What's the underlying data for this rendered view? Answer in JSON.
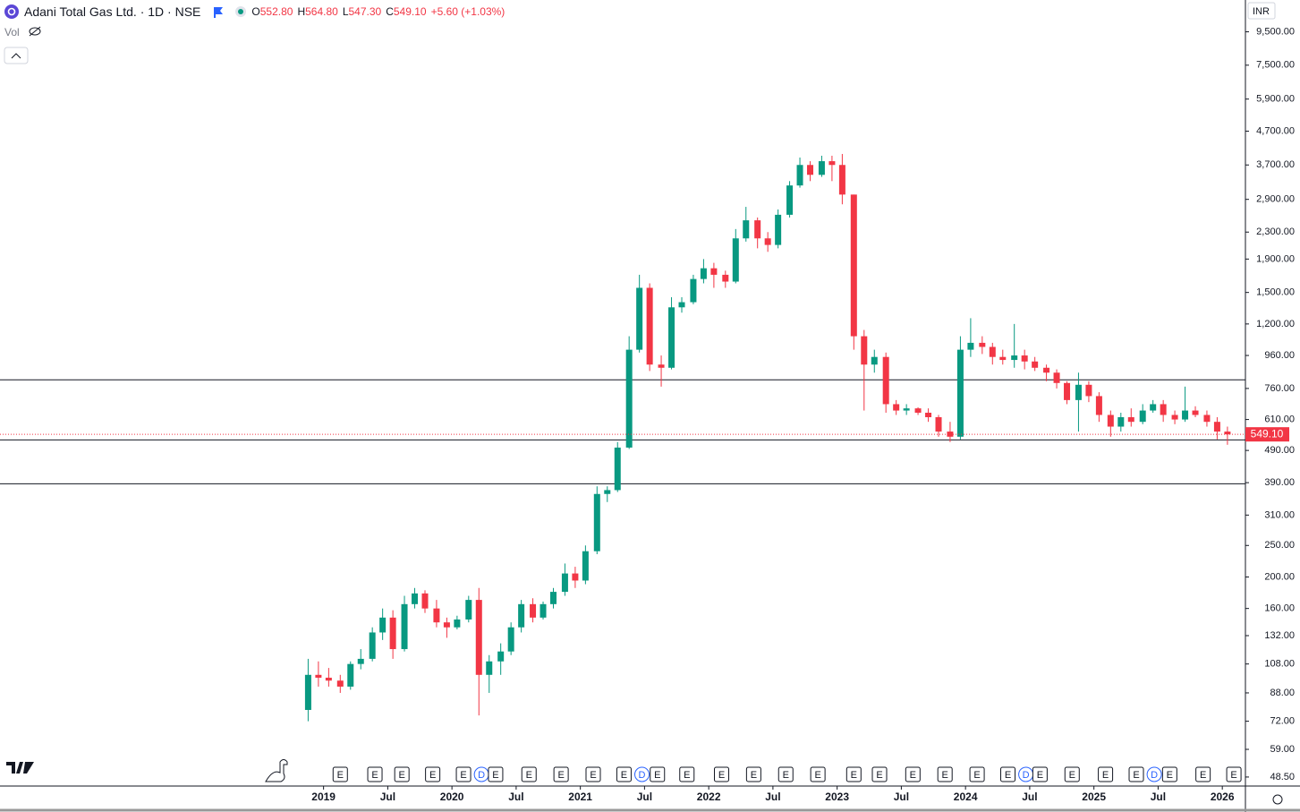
{
  "chart_data": {
    "type": "candlestick",
    "title": "Adani Total Gas Ltd. · 1D · NSE",
    "header": {
      "o_label": "O",
      "o": "552.80",
      "h_label": "H",
      "h": "564.80",
      "l_label": "L",
      "l": "547.30",
      "c_label": "C",
      "c": "549.10",
      "change": "+5.60 (+1.03%)"
    },
    "volume_label": "Vol",
    "currency": "INR",
    "log_scale": true,
    "up_color": "#089981",
    "down_color": "#f23645",
    "x": [
      2018.88,
      2018.96,
      2019.04,
      2019.13,
      2019.21,
      2019.29,
      2019.38,
      2019.46,
      2019.54,
      2019.63,
      2019.71,
      2019.79,
      2019.88,
      2019.96,
      2020.04,
      2020.13,
      2020.21,
      2020.29,
      2020.38,
      2020.46,
      2020.54,
      2020.63,
      2020.71,
      2020.79,
      2020.88,
      2020.96,
      2021.04,
      2021.13,
      2021.21,
      2021.29,
      2021.38,
      2021.46,
      2021.54,
      2021.63,
      2021.71,
      2021.79,
      2021.88,
      2021.96,
      2022.04,
      2022.13,
      2022.21,
      2022.29,
      2022.38,
      2022.46,
      2022.54,
      2022.63,
      2022.71,
      2022.79,
      2022.88,
      2022.96,
      2023.04,
      2023.13,
      2023.21,
      2023.29,
      2023.38,
      2023.46,
      2023.54,
      2023.63,
      2023.71,
      2023.79,
      2023.88,
      2023.96,
      2024.04,
      2024.13,
      2024.21,
      2024.29,
      2024.38,
      2024.46,
      2024.54,
      2024.63,
      2024.71,
      2024.79,
      2024.88,
      2024.96,
      2025.04,
      2025.13,
      2025.21,
      2025.29,
      2025.38,
      2025.46,
      2025.54,
      2025.63,
      2025.71,
      2025.79,
      2025.88,
      2025.96,
      2026.04
    ],
    "open": [
      78,
      100,
      98,
      96,
      92,
      108,
      112,
      135,
      150,
      120,
      165,
      178,
      160,
      145,
      140,
      148,
      170,
      100,
      110,
      118,
      140,
      165,
      150,
      165,
      180,
      205,
      195,
      240,
      360,
      370,
      500,
      1000,
      1550,
      900,
      880,
      1350,
      1400,
      1650,
      1780,
      1700,
      1620,
      2200,
      2500,
      2200,
      2100,
      2600,
      3200,
      3700,
      3450,
      3800,
      3700,
      3000,
      1100,
      900,
      950,
      680,
      650,
      660,
      640,
      620,
      560,
      540,
      1000,
      1050,
      1020,
      950,
      930,
      960,
      920,
      880,
      850,
      790,
      700,
      780,
      720,
      630,
      580,
      620,
      600,
      650,
      680,
      630,
      610,
      650,
      630,
      600,
      560
    ],
    "high": [
      112,
      110,
      105,
      100,
      110,
      120,
      140,
      160,
      158,
      175,
      185,
      182,
      170,
      150,
      152,
      175,
      185,
      115,
      125,
      145,
      170,
      172,
      168,
      185,
      220,
      215,
      250,
      380,
      380,
      520,
      1100,
      1700,
      1600,
      960,
      1450,
      1450,
      1700,
      1900,
      1850,
      1750,
      2350,
      2750,
      2550,
      2300,
      2700,
      3300,
      3900,
      3800,
      3950,
      3950,
      4000,
      3000,
      1150,
      1000,
      980,
      700,
      680,
      665,
      660,
      630,
      600,
      1100,
      1250,
      1100,
      1050,
      1000,
      1200,
      1000,
      950,
      900,
      870,
      800,
      850,
      800,
      740,
      650,
      640,
      660,
      680,
      700,
      700,
      650,
      770,
      670,
      650,
      620,
      580
    ],
    "low": [
      72,
      92,
      92,
      88,
      90,
      104,
      110,
      128,
      112,
      118,
      160,
      155,
      140,
      130,
      138,
      145,
      75,
      88,
      100,
      115,
      135,
      145,
      148,
      160,
      175,
      185,
      190,
      235,
      340,
      365,
      495,
      980,
      860,
      770,
      870,
      1300,
      1380,
      1600,
      1550,
      1550,
      1600,
      2150,
      2050,
      2000,
      2050,
      2550,
      3150,
      3300,
      3400,
      3300,
      2800,
      1000,
      650,
      850,
      640,
      630,
      630,
      630,
      600,
      540,
      520,
      530,
      950,
      970,
      900,
      900,
      880,
      870,
      860,
      800,
      760,
      680,
      560,
      690,
      600,
      540,
      560,
      580,
      590,
      640,
      600,
      590,
      600,
      620,
      580,
      530,
      510
    ],
    "close": [
      100,
      98,
      96,
      92,
      108,
      112,
      135,
      150,
      120,
      165,
      178,
      160,
      145,
      140,
      148,
      170,
      100,
      110,
      118,
      140,
      165,
      150,
      165,
      180,
      205,
      195,
      240,
      360,
      370,
      500,
      1000,
      1550,
      900,
      880,
      1350,
      1400,
      1650,
      1780,
      1700,
      1620,
      2200,
      2500,
      2200,
      2100,
      2600,
      3200,
      3700,
      3450,
      3800,
      3700,
      3000,
      1100,
      900,
      950,
      680,
      650,
      660,
      640,
      620,
      560,
      540,
      1000,
      1050,
      1020,
      950,
      930,
      960,
      920,
      880,
      850,
      790,
      700,
      780,
      720,
      630,
      580,
      620,
      600,
      650,
      680,
      630,
      610,
      650,
      630,
      600,
      560,
      549.1
    ],
    "last_price": {
      "value": 549.1,
      "label": "549.10"
    },
    "hlines": [
      808,
      528,
      387
    ],
    "xlim": [
      2016.48,
      2026.18
    ],
    "ylim": [
      45.5,
      11900
    ],
    "xticks": [
      {
        "value": 2019,
        "label": "2019"
      },
      {
        "value": 2019.5,
        "label": "Jul"
      },
      {
        "value": 2020,
        "label": "2020"
      },
      {
        "value": 2020.5,
        "label": "Jul"
      },
      {
        "value": 2021,
        "label": "2021"
      },
      {
        "value": 2021.5,
        "label": "Jul"
      },
      {
        "value": 2022,
        "label": "2022"
      },
      {
        "value": 2022.5,
        "label": "Jul"
      },
      {
        "value": 2023,
        "label": "2023"
      },
      {
        "value": 2023.5,
        "label": "Jul"
      },
      {
        "value": 2024,
        "label": "2024"
      },
      {
        "value": 2024.5,
        "label": "Jul"
      },
      {
        "value": 2025,
        "label": "2025"
      },
      {
        "value": 2025.5,
        "label": "Jul"
      },
      {
        "value": 2026,
        "label": "2026"
      }
    ],
    "yticks": [
      {
        "value": 48.5,
        "label": "48.50"
      },
      {
        "value": 59,
        "label": "59.00"
      },
      {
        "value": 72,
        "label": "72.00"
      },
      {
        "value": 88,
        "label": "88.00"
      },
      {
        "value": 108,
        "label": "108.00"
      },
      {
        "value": 132,
        "label": "132.00"
      },
      {
        "value": 160,
        "label": "160.00"
      },
      {
        "value": 200,
        "label": "200.00"
      },
      {
        "value": 250,
        "label": "250.00"
      },
      {
        "value": 310,
        "label": "310.00"
      },
      {
        "value": 390,
        "label": "390.00"
      },
      {
        "value": 490,
        "label": "490.00"
      },
      {
        "value": 610,
        "label": "610.00"
      },
      {
        "value": 760,
        "label": "760.00"
      },
      {
        "value": 960,
        "label": "960.00"
      },
      {
        "value": 1200,
        "label": "1,200.00"
      },
      {
        "value": 1500,
        "label": "1,500.00"
      },
      {
        "value": 1900,
        "label": "1,900.00"
      },
      {
        "value": 2300,
        "label": "2,300.00"
      },
      {
        "value": 2900,
        "label": "2,900.00"
      },
      {
        "value": 3700,
        "label": "3,700.00"
      },
      {
        "value": 4700,
        "label": "4,700.00"
      },
      {
        "value": 5900,
        "label": "5,900.00"
      },
      {
        "value": 7500,
        "label": "7,500.00"
      },
      {
        "value": 9500,
        "label": "9,500.00"
      }
    ],
    "events": [
      {
        "x": 2019.13,
        "label": "E"
      },
      {
        "x": 2019.4,
        "label": "E"
      },
      {
        "x": 2019.61,
        "label": "E"
      },
      {
        "x": 2019.85,
        "label": "E"
      },
      {
        "x": 2020.09,
        "label": "E"
      },
      {
        "x": 2020.23,
        "label": "D"
      },
      {
        "x": 2020.34,
        "label": "E"
      },
      {
        "x": 2020.6,
        "label": "E"
      },
      {
        "x": 2020.85,
        "label": "E"
      },
      {
        "x": 2021.1,
        "label": "E"
      },
      {
        "x": 2021.34,
        "label": "E"
      },
      {
        "x": 2021.48,
        "label": "D"
      },
      {
        "x": 2021.6,
        "label": "E"
      },
      {
        "x": 2021.83,
        "label": "E"
      },
      {
        "x": 2022.1,
        "label": "E"
      },
      {
        "x": 2022.35,
        "label": "E"
      },
      {
        "x": 2022.6,
        "label": "E"
      },
      {
        "x": 2022.85,
        "label": "E"
      },
      {
        "x": 2023.13,
        "label": "E"
      },
      {
        "x": 2023.33,
        "label": "E"
      },
      {
        "x": 2023.59,
        "label": "E"
      },
      {
        "x": 2023.84,
        "label": "E"
      },
      {
        "x": 2024.09,
        "label": "E"
      },
      {
        "x": 2024.33,
        "label": "E"
      },
      {
        "x": 2024.47,
        "label": "D"
      },
      {
        "x": 2024.58,
        "label": "E"
      },
      {
        "x": 2024.83,
        "label": "E"
      },
      {
        "x": 2025.09,
        "label": "E"
      },
      {
        "x": 2025.33,
        "label": "E"
      },
      {
        "x": 2025.47,
        "label": "D"
      },
      {
        "x": 2025.59,
        "label": "E"
      },
      {
        "x": 2025.85,
        "label": "E"
      },
      {
        "x": 2026.09,
        "label": "E"
      }
    ]
  }
}
